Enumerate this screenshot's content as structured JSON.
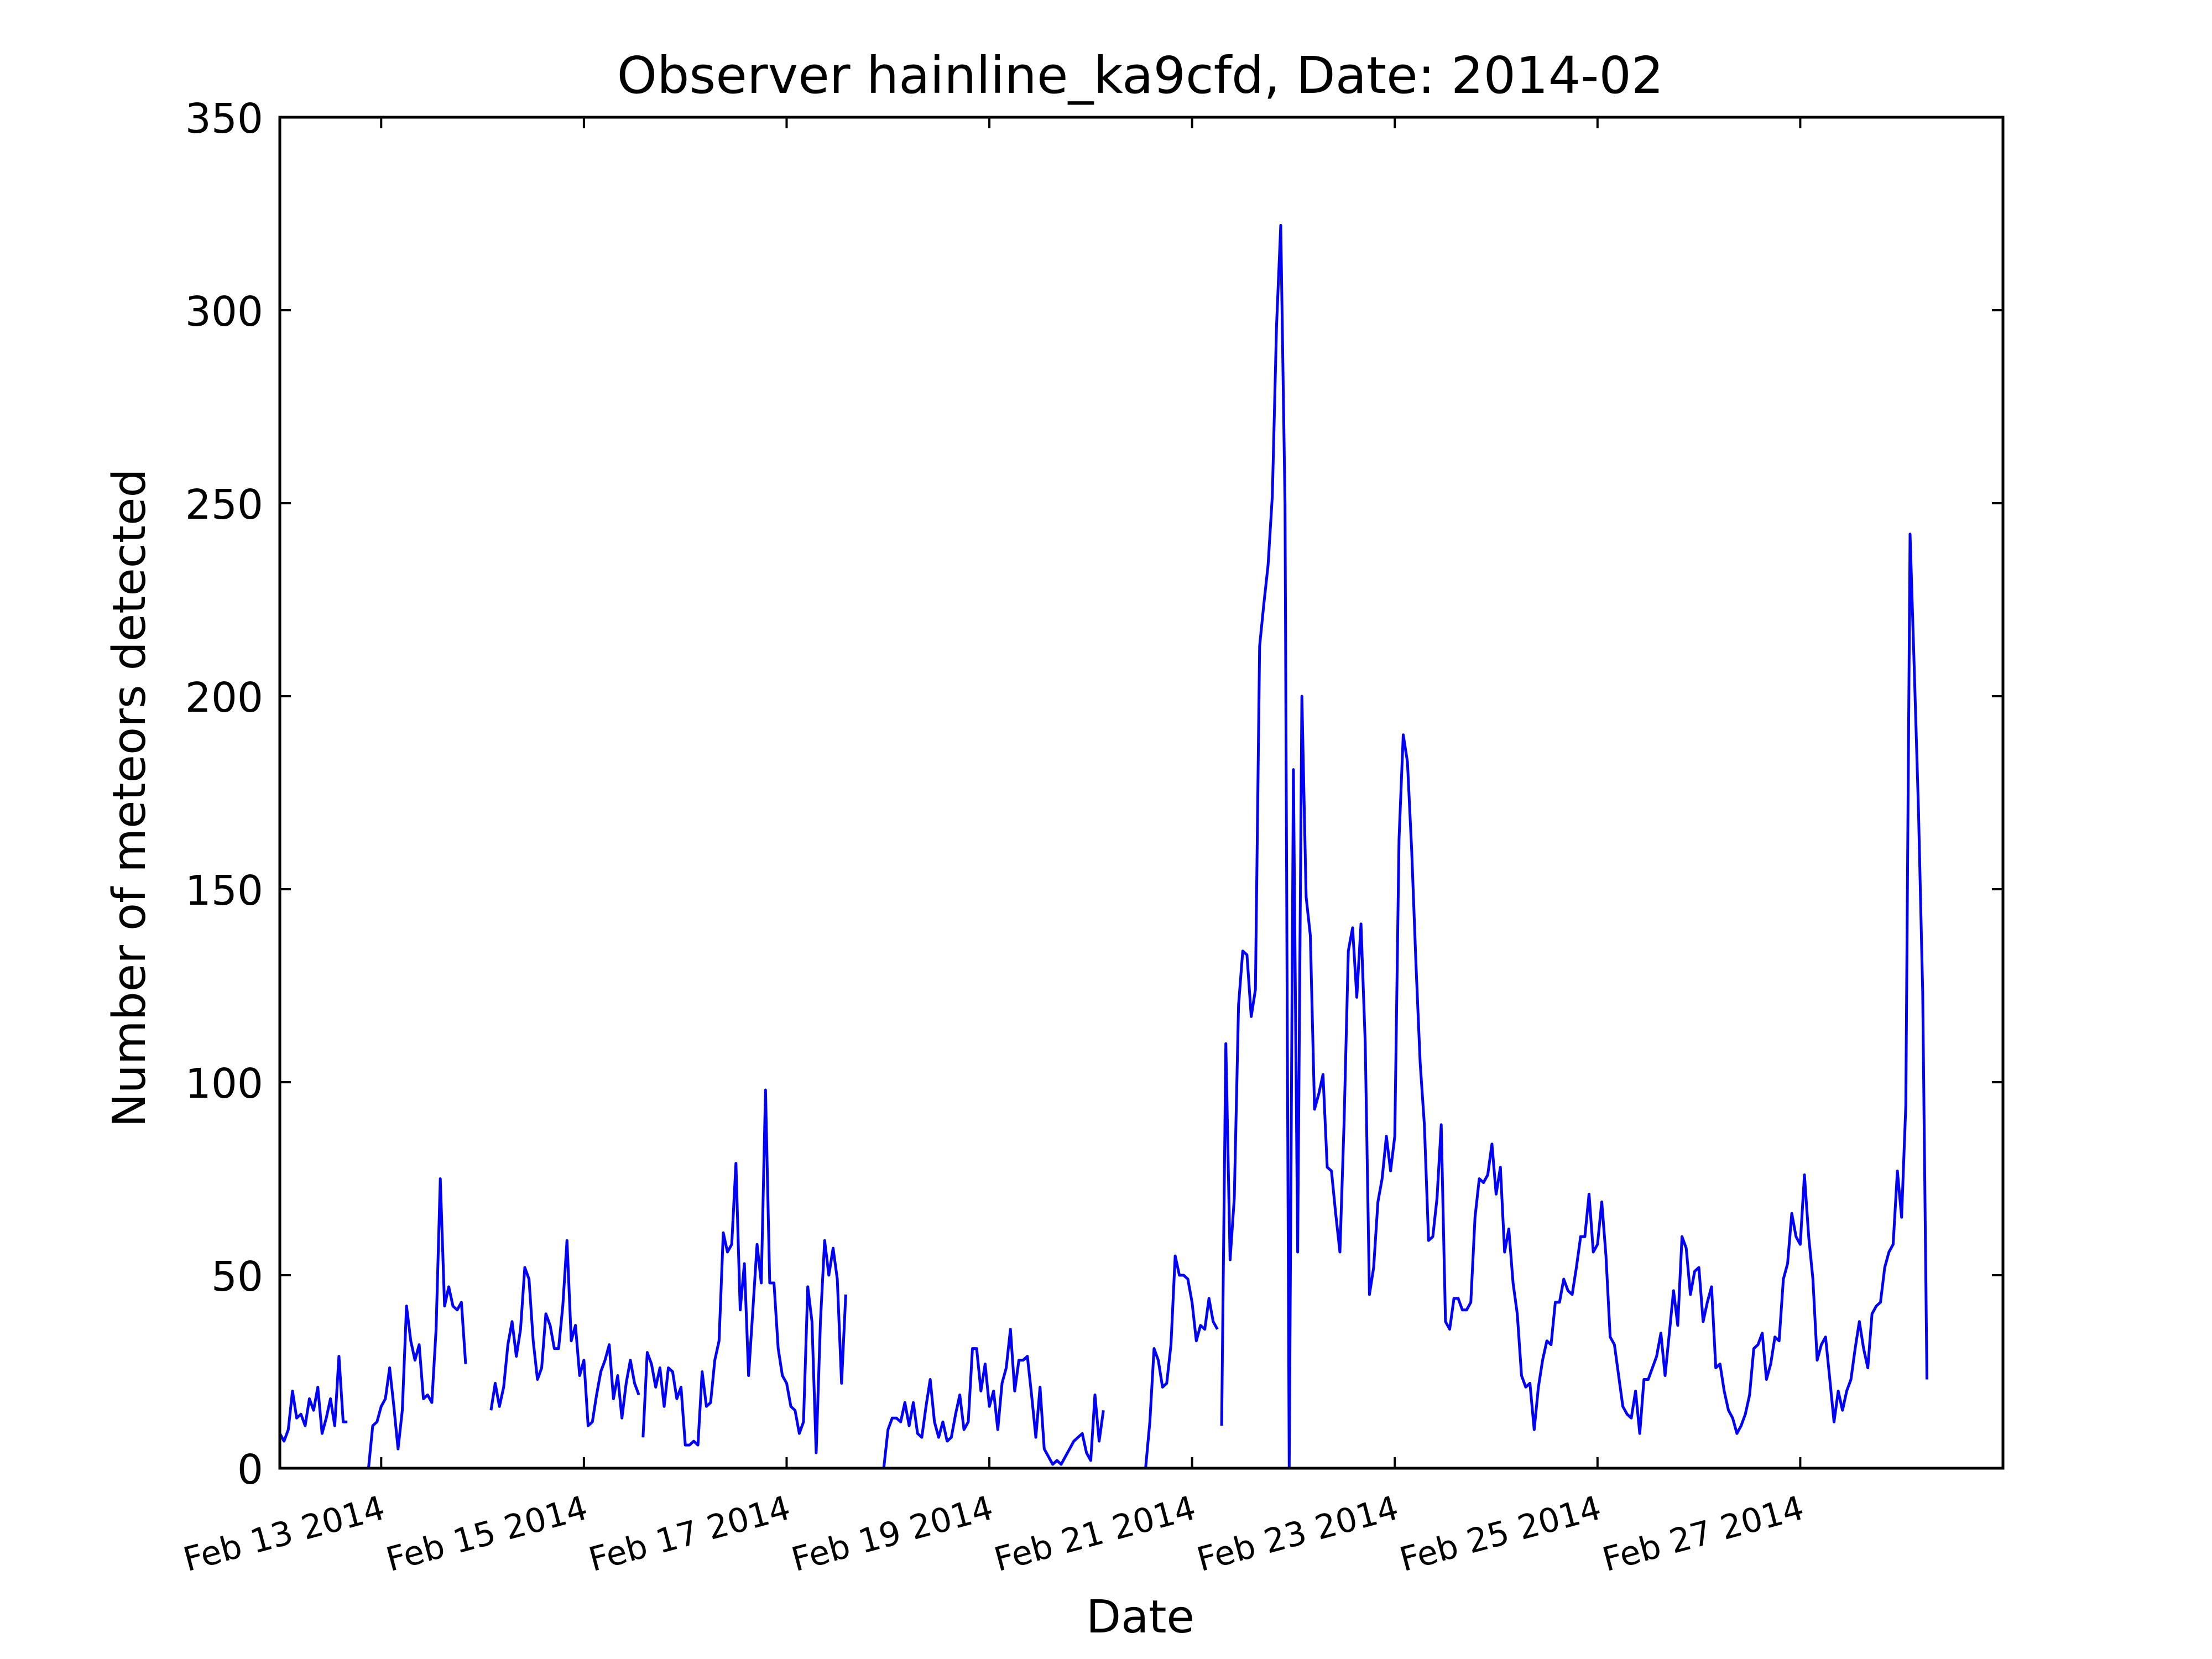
{
  "chart_data": {
    "type": "line",
    "title": "Observer hainline_ka9cfd, Date: 2014-02",
    "xlabel": "Date",
    "ylabel": "Number of meteors detected",
    "x_axis_type": "date",
    "xlim": [
      "2014-02-12 00:00",
      "2014-03-01 00:00"
    ],
    "ylim": [
      0,
      350
    ],
    "y_ticks": [
      0,
      50,
      100,
      150,
      200,
      250,
      300,
      350
    ],
    "x_ticks": [
      {
        "date": "2014-02-13",
        "label": "Feb 13 2014"
      },
      {
        "date": "2014-02-15",
        "label": "Feb 15 2014"
      },
      {
        "date": "2014-02-17",
        "label": "Feb 17 2014"
      },
      {
        "date": "2014-02-19",
        "label": "Feb 19 2014"
      },
      {
        "date": "2014-02-21",
        "label": "Feb 21 2014"
      },
      {
        "date": "2014-02-23",
        "label": "Feb 23 2014"
      },
      {
        "date": "2014-02-25",
        "label": "Feb 25 2014"
      },
      {
        "date": "2014-02-27",
        "label": "Feb 27 2014"
      }
    ],
    "grid": false,
    "line_color": "#0000ff",
    "series": [
      {
        "segments": [
          {
            "start": "2014-02-12 00:00",
            "step_hours": 1,
            "values": [
              9,
              7,
              10,
              20,
              13,
              14,
              11,
              18,
              15,
              21,
              9,
              13,
              18,
              11,
              29,
              12,
              12
            ]
          },
          {
            "start": "2014-02-12 21:00",
            "step_hours": 1,
            "values": [
              0,
              11,
              12,
              16,
              18,
              26,
              16,
              5,
              15,
              42,
              33,
              28,
              32,
              18,
              19,
              17,
              36,
              75,
              42,
              47,
              42,
              41,
              43,
              27
            ]
          },
          {
            "start": "2014-02-14 02:00",
            "step_hours": 1,
            "values": [
              15,
              22,
              16,
              21,
              32,
              38,
              29,
              36,
              52,
              49,
              33,
              23,
              26,
              40,
              37,
              31,
              31,
              42,
              59,
              33,
              37,
              24,
              28,
              11,
              12,
              19,
              25,
              28,
              32,
              18,
              24,
              13,
              22,
              28,
              22,
              19
            ]
          },
          {
            "start": "2014-02-15 14:00",
            "step_hours": 1,
            "values": [
              8,
              30,
              27,
              21,
              26,
              16,
              26,
              25,
              18,
              21,
              6,
              6,
              7,
              6,
              25,
              16,
              17,
              28,
              33,
              61,
              56,
              58,
              79,
              41,
              53,
              24,
              41,
              58,
              48,
              98,
              48,
              48,
              31,
              24,
              22,
              16,
              15,
              9,
              12,
              47,
              38,
              4,
              38,
              59,
              50,
              57,
              49,
              22,
              45
            ]
          },
          {
            "start": "2014-02-17 23:00",
            "step_hours": 1,
            "values": [
              0,
              10,
              13,
              13,
              12,
              17,
              11,
              17,
              9,
              8,
              16,
              23,
              12,
              8,
              12,
              7,
              8,
              14,
              19,
              10,
              12,
              31,
              31,
              20,
              27,
              16,
              20,
              10,
              22,
              26,
              36,
              20,
              28,
              28,
              29,
              19,
              8,
              21,
              5,
              3,
              1,
              2,
              1,
              3,
              5,
              7,
              8,
              9,
              4,
              2,
              19,
              7,
              15
            ]
          },
          {
            "start": "2014-02-20 13:00",
            "step_hours": 1,
            "values": [
              0,
              12,
              31,
              28,
              21,
              22,
              32,
              55,
              50,
              50,
              49,
              43,
              33,
              37,
              36,
              44,
              38,
              36
            ]
          },
          {
            "start": "2014-02-21 07:00",
            "step_hours": 1,
            "values": [
              11,
              110,
              54,
              70,
              120,
              134,
              133,
              117,
              124,
              213,
              224,
              234,
              252,
              296,
              322,
              250,
              0,
              181,
              56,
              200,
              148,
              138,
              93,
              97,
              102,
              78,
              77,
              66,
              56,
              90,
              134,
              140,
              122,
              141,
              110,
              45,
              52,
              69,
              75,
              86,
              77,
              86,
              163,
              190,
              183,
              160,
              131,
              105,
              89,
              59,
              60,
              70,
              89,
              38,
              36,
              44,
              44,
              41,
              41,
              43,
              65,
              75,
              74,
              76,
              84,
              71,
              78,
              56,
              62,
              48,
              40,
              24,
              21,
              22,
              10,
              21,
              28,
              33,
              32,
              43,
              43,
              49,
              46,
              45,
              52,
              60,
              60,
              71,
              56,
              58,
              69,
              55,
              34,
              32,
              24,
              16,
              14,
              13,
              20,
              9,
              23,
              23,
              26,
              29,
              35,
              24,
              35,
              46,
              37,
              60,
              57,
              45,
              51,
              52,
              38,
              43,
              47,
              26,
              27,
              20,
              15,
              13,
              9,
              11,
              14,
              19,
              31,
              32,
              35,
              23,
              27,
              34,
              33,
              49,
              53,
              66,
              60,
              58,
              76,
              60,
              49,
              28,
              32,
              34,
              23,
              12,
              20,
              15,
              20,
              23,
              31,
              38,
              31,
              26,
              40,
              42,
              43,
              52,
              56,
              58,
              77,
              65,
              94,
              242,
              207,
              170,
              123,
              23
            ]
          }
        ]
      }
    ]
  }
}
